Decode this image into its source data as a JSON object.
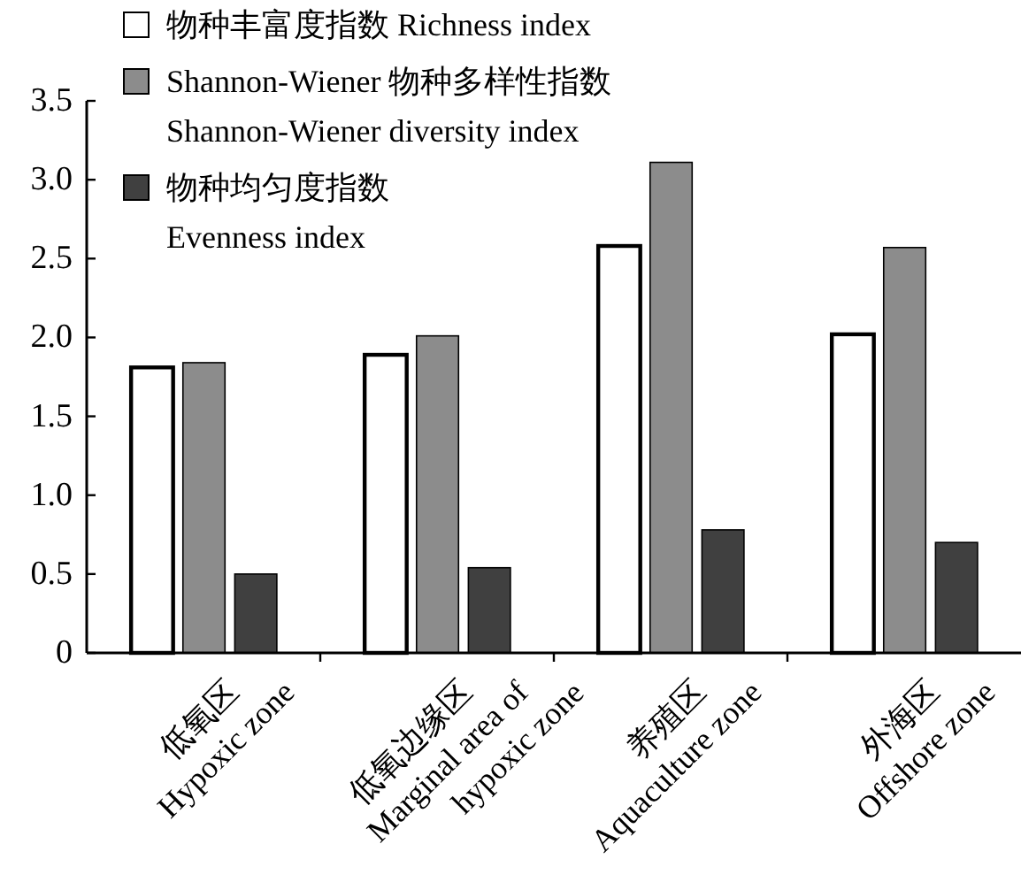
{
  "chart_data": {
    "type": "bar",
    "categories": [
      "低氧区\nHypoxic zone",
      "低氧边缘区\nMarginal area of\nhypoxic zone",
      "养殖区\nAquaculture zone",
      "外海区\nOffshore zone"
    ],
    "series": [
      {
        "name": "物种丰富度指数 Richness index",
        "color": "#ffffff",
        "values": [
          1.81,
          1.89,
          2.58,
          2.02
        ]
      },
      {
        "name": "Shannon-Wiener 物种多样性指数\nShannon-Wiener diversity index",
        "color": "#8c8c8c",
        "values": [
          1.84,
          2.01,
          3.11,
          2.57
        ]
      },
      {
        "name": "物种均匀度指数\nEvenness index",
        "color": "#404040",
        "values": [
          0.5,
          0.54,
          0.78,
          0.7
        ]
      }
    ],
    "ylim": [
      0,
      3.5
    ],
    "yticks": [
      0,
      {
        "value": 0.5,
        "label": "0.5"
      },
      {
        "value": 1,
        "label": "1.0"
      },
      {
        "value": 1.5,
        "label": "1.5"
      },
      {
        "value": 2,
        "label": "2.0"
      },
      {
        "value": 2.5,
        "label": "2.5"
      },
      {
        "value": 3,
        "label": "3.0"
      },
      {
        "value": 3.5,
        "label": "3.5"
      }
    ],
    "grid": false,
    "legend": "top left"
  }
}
